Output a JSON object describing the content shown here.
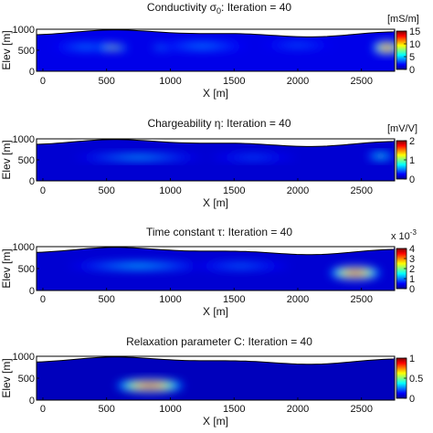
{
  "colors": {
    "colormap": [
      "#00008f",
      "#0000ff",
      "#0080ff",
      "#00ffff",
      "#80ff80",
      "#ffff00",
      "#ff8000",
      "#ff0000",
      "#800000"
    ],
    "topography_fill": "#ffffff",
    "frame": "#000000"
  },
  "chart_data": [
    {
      "type": "heatmap",
      "title": "Conductivity σ0: Iteration = 40",
      "title_main": "Conductivity σ",
      "title_sub": "0",
      "title_rest": ": Iteration = 40",
      "xlabel": "X [m]",
      "ylabel": "Elev [m]",
      "xlim": [
        -50,
        2760
      ],
      "ylim": [
        0,
        1000
      ],
      "xticks": [
        "0",
        "500",
        "1000",
        "1500",
        "2000",
        "2500"
      ],
      "yticks": [
        "0",
        "500",
        "1000"
      ],
      "colorbar": {
        "unit": "[mS/m]",
        "ticks": [
          "0",
          "5",
          "10",
          "15"
        ],
        "range": [
          0,
          15
        ]
      },
      "background_value": 1.5,
      "anomalies": [
        {
          "x": 340,
          "y": 580,
          "rx": 260,
          "ry": 95,
          "v": 4
        },
        {
          "x": 550,
          "y": 560,
          "rx": 120,
          "ry": 55,
          "v": 10.5
        },
        {
          "x": 1000,
          "y": 570,
          "rx": 150,
          "ry": 60,
          "v": 9
        },
        {
          "x": 1450,
          "y": 565,
          "rx": 110,
          "ry": 55,
          "v": 10
        },
        {
          "x": 1250,
          "y": 600,
          "rx": 350,
          "ry": 110,
          "v": 4
        },
        {
          "x": 2000,
          "y": 620,
          "rx": 280,
          "ry": 80,
          "v": 3.5
        },
        {
          "x": 2700,
          "y": 560,
          "rx": 110,
          "ry": 150,
          "v": 15
        }
      ]
    },
    {
      "type": "heatmap",
      "title": "Chargeability η: Iteration = 40",
      "xlabel": "X [m]",
      "ylabel": "Elev [m]",
      "xlim": [
        -50,
        2760
      ],
      "ylim": [
        0,
        1000
      ],
      "xticks": [
        "0",
        "500",
        "1000",
        "1500",
        "2000",
        "2500"
      ],
      "yticks": [
        "0",
        "500",
        "1000"
      ],
      "colorbar": {
        "unit": "[mV/V]",
        "ticks": [
          "0",
          "1",
          "2"
        ],
        "range": [
          0,
          2
        ]
      },
      "background_value": 0.15,
      "anomalies": [
        {
          "x": 950,
          "y": 560,
          "rx": 150,
          "ry": 50,
          "v": 2
        },
        {
          "x": 750,
          "y": 560,
          "rx": 500,
          "ry": 80,
          "v": 0.7
        },
        {
          "x": 1650,
          "y": 560,
          "rx": 350,
          "ry": 80,
          "v": 0.45
        },
        {
          "x": 2650,
          "y": 590,
          "rx": 110,
          "ry": 90,
          "v": 0.9
        }
      ]
    },
    {
      "type": "heatmap",
      "title": "Time constant τ: Iteration = 40",
      "xlabel": "X [m]",
      "ylabel": "Elev [m]",
      "xlim": [
        -50,
        2760
      ],
      "ylim": [
        0,
        1000
      ],
      "xticks": [
        "0",
        "500",
        "1000",
        "1500",
        "2000",
        "2500"
      ],
      "yticks": [
        "0",
        "500",
        "1000"
      ],
      "colorbar": {
        "unit": "x 10",
        "exponent": "-3",
        "ticks": [
          "0",
          "1",
          "2",
          "3",
          "4"
        ],
        "range": [
          0,
          4
        ]
      },
      "background_value": 0.3,
      "anomalies": [
        {
          "x": 950,
          "y": 540,
          "rx": 170,
          "ry": 50,
          "v": 3.8
        },
        {
          "x": 750,
          "y": 560,
          "rx": 550,
          "ry": 95,
          "v": 1.4
        },
        {
          "x": 1550,
          "y": 560,
          "rx": 400,
          "ry": 90,
          "v": 1.0
        },
        {
          "x": 2450,
          "y": 400,
          "rx": 200,
          "ry": 150,
          "v": 4
        }
      ]
    },
    {
      "type": "heatmap",
      "title": "Relaxation parameter C: Iteration = 40",
      "xlabel": "X [m]",
      "ylabel": "Elev [m]",
      "xlim": [
        -50,
        2760
      ],
      "ylim": [
        0,
        1000
      ],
      "xticks": [
        "0",
        "500",
        "1000",
        "1500",
        "2000",
        "2500"
      ],
      "yticks": [
        "0",
        "500",
        "1000"
      ],
      "colorbar": {
        "unit": "",
        "ticks": [
          "0",
          "0.5",
          "1"
        ],
        "range": [
          0,
          1
        ]
      },
      "background_value": 0.05,
      "anomalies": [
        {
          "x": 840,
          "y": 330,
          "rx": 270,
          "ry": 150,
          "v": 1
        }
      ]
    }
  ]
}
